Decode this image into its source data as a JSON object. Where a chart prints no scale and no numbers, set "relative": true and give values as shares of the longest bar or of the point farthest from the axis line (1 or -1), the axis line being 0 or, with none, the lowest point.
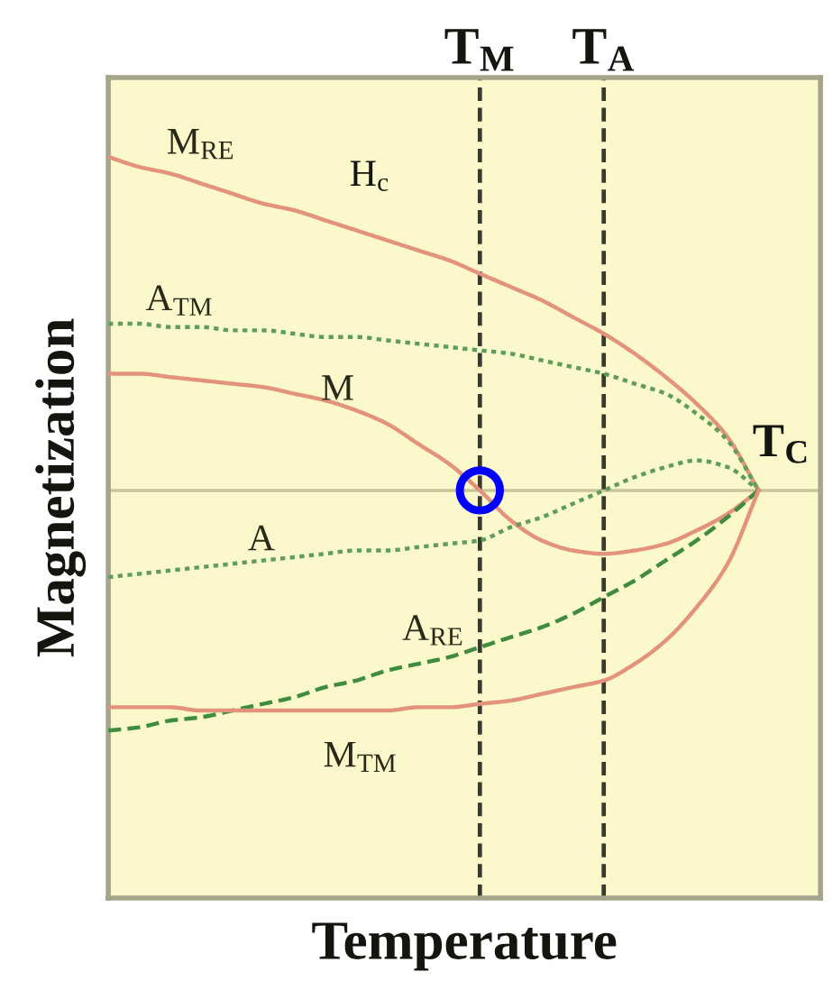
{
  "chart_data": {
    "type": "line",
    "relative": true,
    "xlabel": "Temperature",
    "ylabel": "Magnetization",
    "grid": "x",
    "categories": [
      null,
      null,
      null,
      null,
      null,
      null,
      null,
      null,
      null,
      null,
      null,
      null,
      "T$_{M}$",
      null,
      null,
      null,
      "T$_{A}$",
      null,
      null,
      null,
      null,
      null,
      null,
      null
    ],
    "series": [
      {
        "name": "M$_{RE}$",
        "color": "#e3937c",
        "line_style": "solid",
        "values": [
          1.0,
          0.97,
          0.95,
          0.92,
          0.89,
          0.86,
          0.84,
          0.81,
          0.78,
          0.75,
          0.72,
          0.69,
          0.65,
          0.61,
          0.57,
          0.52,
          0.47,
          0.41,
          0.34,
          0.26,
          0.16,
          0,
          null,
          null
        ]
      },
      {
        "name": "A$_{TM}$",
        "color": "#5e9e58",
        "line_style": "dotted",
        "values": [
          0.5,
          0.5,
          0.49,
          0.49,
          0.48,
          0.48,
          0.47,
          0.46,
          0.46,
          0.45,
          0.44,
          0.43,
          0.42,
          0.41,
          0.39,
          0.37,
          0.35,
          0.32,
          0.29,
          0.23,
          0.15,
          0,
          null,
          null
        ]
      },
      {
        "name": "M",
        "color": "#e3937c",
        "line_style": "solid",
        "values": [
          0.35,
          0.35,
          0.34,
          0.33,
          0.32,
          0.31,
          0.29,
          0.27,
          0.24,
          0.2,
          0.14,
          0.08,
          0,
          -0.09,
          -0.15,
          -0.18,
          -0.19,
          -0.18,
          -0.16,
          -0.12,
          -0.07,
          0,
          null,
          null
        ]
      },
      {
        "name": "A",
        "color": "#5e9e58",
        "line_style": "dotted",
        "values": [
          -0.26,
          -0.25,
          -0.24,
          -0.23,
          -0.22,
          -0.21,
          -0.2,
          -0.19,
          -0.18,
          -0.18,
          -0.17,
          -0.16,
          -0.15,
          -0.11,
          -0.08,
          -0.04,
          0,
          0.04,
          0.07,
          0.09,
          0.07,
          0,
          null,
          null
        ]
      },
      {
        "name": "A$_{RE}$",
        "color": "#3f8c3f",
        "line_style": "dashed",
        "values": [
          -0.72,
          -0.71,
          -0.69,
          -0.68,
          -0.66,
          -0.64,
          -0.62,
          -0.59,
          -0.57,
          -0.54,
          -0.52,
          -0.5,
          -0.47,
          -0.44,
          -0.41,
          -0.37,
          -0.32,
          -0.27,
          -0.21,
          -0.15,
          -0.08,
          0,
          null,
          null
        ]
      },
      {
        "name": "M$_{TM}$",
        "color": "#e3937c",
        "line_style": "solid",
        "values": [
          -0.65,
          -0.65,
          -0.65,
          -0.66,
          -0.66,
          -0.66,
          -0.66,
          -0.66,
          -0.66,
          -0.66,
          -0.65,
          -0.65,
          -0.64,
          -0.63,
          -0.61,
          -0.59,
          -0.57,
          -0.52,
          -0.45,
          -0.35,
          -0.22,
          0,
          null,
          null
        ]
      },
      {
        "type": "scatter",
        "color": "#0000ff",
        "marker": "circle",
        "values": [
          null,
          null,
          null,
          null,
          null,
          null,
          null,
          null,
          null,
          null,
          null,
          null,
          0,
          null,
          null,
          null,
          null,
          null,
          null,
          null,
          null,
          null,
          null,
          null
        ]
      }
    ],
    "ref_lines": [
      {
        "axis": "y",
        "value": 0,
        "color": "#c9c59a",
        "line_style": "solid"
      }
    ],
    "annotations": [
      "H$_{c}$",
      "T$_{C}$"
    ]
  }
}
